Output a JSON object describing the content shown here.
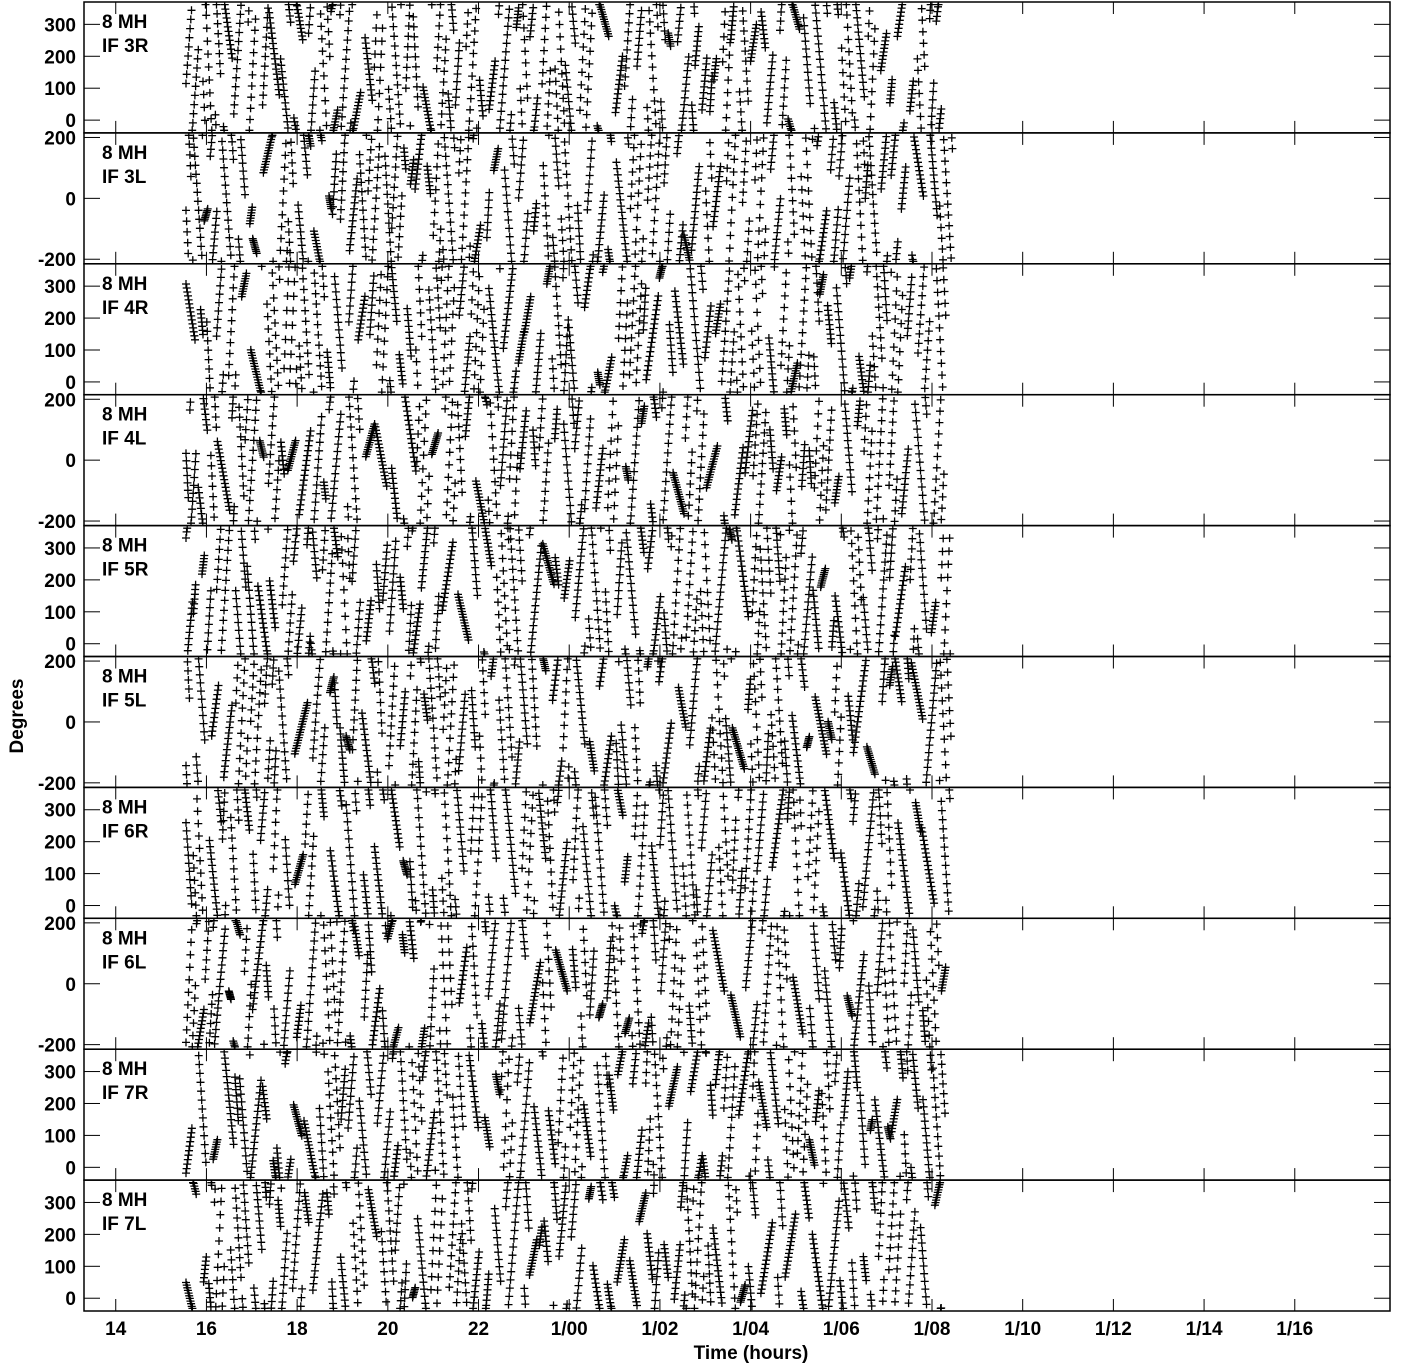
{
  "chart_data": {
    "type": "scatter",
    "marker": "+",
    "marker_color": "#000000",
    "xlabel": "Time (hours)",
    "ylabel": "Degrees",
    "x_range_hours": [
      13.3,
      42.1
    ],
    "x_ticks": [
      {
        "h": 14,
        "label": "14"
      },
      {
        "h": 16,
        "label": "16"
      },
      {
        "h": 18,
        "label": "18"
      },
      {
        "h": 20,
        "label": "20"
      },
      {
        "h": 22,
        "label": "22"
      },
      {
        "h": 24,
        "label": "1/00"
      },
      {
        "h": 26,
        "label": "1/02"
      },
      {
        "h": 28,
        "label": "1/04"
      },
      {
        "h": 30,
        "label": "1/06"
      },
      {
        "h": 32,
        "label": "1/08"
      },
      {
        "h": 34,
        "label": "1/10"
      },
      {
        "h": 36,
        "label": "1/12"
      },
      {
        "h": 38,
        "label": "1/14"
      },
      {
        "h": 40,
        "label": "1/16"
      }
    ],
    "data_time_span_hours": [
      15.55,
      32.3
    ],
    "panels": [
      {
        "line1": "8 MH",
        "line2": "IF 3R",
        "ylim": [
          -40,
          370
        ],
        "yticks": [
          0,
          100,
          200,
          300
        ]
      },
      {
        "line1": "8 MH",
        "line2": "IF 3L",
        "ylim": [
          -215,
          215
        ],
        "yticks": [
          -200,
          0,
          200
        ]
      },
      {
        "line1": "8 MH",
        "line2": "IF 4R",
        "ylim": [
          -40,
          370
        ],
        "yticks": [
          0,
          100,
          200,
          300
        ]
      },
      {
        "line1": "8 MH",
        "line2": "IF 4L",
        "ylim": [
          -215,
          215
        ],
        "yticks": [
          -200,
          0,
          200
        ]
      },
      {
        "line1": "8 MH",
        "line2": "IF 5R",
        "ylim": [
          -40,
          370
        ],
        "yticks": [
          0,
          100,
          200,
          300
        ]
      },
      {
        "line1": "8 MH",
        "line2": "IF 5L",
        "ylim": [
          -215,
          215
        ],
        "yticks": [
          -200,
          0,
          200
        ]
      },
      {
        "line1": "8 MH",
        "line2": "IF 6R",
        "ylim": [
          -40,
          370
        ],
        "yticks": [
          0,
          100,
          200,
          300
        ]
      },
      {
        "line1": "8 MH",
        "line2": "IF 6L",
        "ylim": [
          -215,
          215
        ],
        "yticks": [
          -200,
          0,
          200
        ]
      },
      {
        "line1": "8 MH",
        "line2": "IF 7R",
        "ylim": [
          -40,
          370
        ],
        "yticks": [
          0,
          100,
          200,
          300
        ]
      },
      {
        "line1": "8 MH",
        "line2": "IF 7L",
        "ylim": [
          -40,
          370
        ],
        "yticks": [
          0,
          100,
          200,
          300
        ]
      }
    ]
  }
}
